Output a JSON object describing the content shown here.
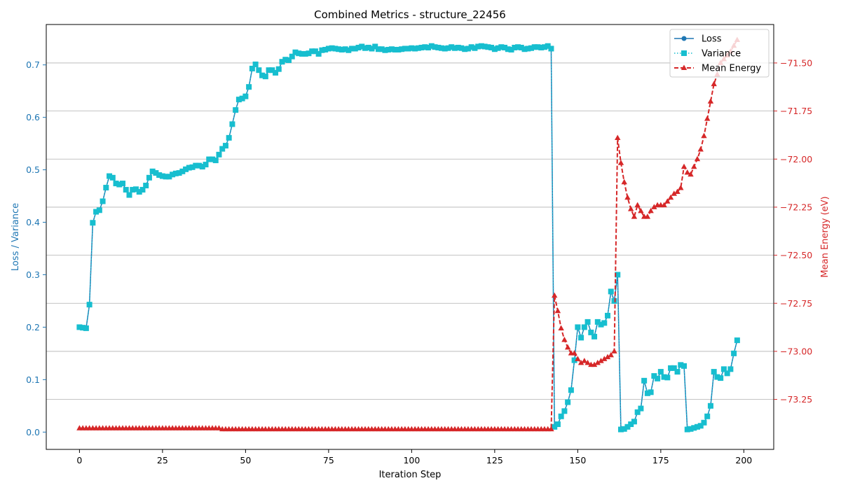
{
  "chart_data": {
    "type": "line",
    "title": "Combined Metrics - structure_22456",
    "xlabel": "Iteration Step",
    "ylabel_left": "Loss / Variance",
    "ylabel_right": "Mean Energy (eV)",
    "xlim": [
      -10,
      209
    ],
    "ylim_left": [
      -0.033,
      0.777
    ],
    "ylim_right": [
      -73.51,
      -71.3
    ],
    "xticks": [
      0,
      25,
      50,
      75,
      100,
      125,
      150,
      175,
      200
    ],
    "xtick_labels": [
      "0",
      "25",
      "50",
      "75",
      "100",
      "125",
      "150",
      "175",
      "200"
    ],
    "yticks_left": [
      0.0,
      0.1,
      0.2,
      0.3,
      0.4,
      0.5,
      0.6,
      0.7
    ],
    "ytick_labels_left": [
      "0.0",
      "0.1",
      "0.2",
      "0.3",
      "0.4",
      "0.5",
      "0.6",
      "0.7"
    ],
    "yticks_right": [
      -73.25,
      -73.0,
      -72.75,
      -72.5,
      -72.25,
      -72.0,
      -71.75,
      -71.5
    ],
    "ytick_labels_right": [
      "−73.25",
      "−73.00",
      "−72.75",
      "−72.50",
      "−72.25",
      "−72.00",
      "−71.75",
      "−71.50"
    ],
    "grid": "horizontal (right axis)",
    "legend_position": "top-right",
    "colors": {
      "loss": "#1f77b4",
      "variance": "#17becf",
      "energy": "#d62728",
      "left_axis": "#1f77b4",
      "right_axis": "#d62728",
      "grid": "#b0b0b0"
    },
    "series": [
      {
        "name": "Loss",
        "axis": "left",
        "style": "solid",
        "marker": "circle",
        "values": [
          0.2,
          0.199,
          0.198,
          0.243,
          0.399,
          0.42,
          0.423,
          0.44,
          0.466,
          0.488,
          0.485,
          0.474,
          0.472,
          0.474,
          0.462,
          0.452,
          0.462,
          0.463,
          0.458,
          0.462,
          0.47,
          0.485,
          0.497,
          0.494,
          0.49,
          0.488,
          0.487,
          0.487,
          0.491,
          0.493,
          0.494,
          0.497,
          0.501,
          0.504,
          0.505,
          0.508,
          0.508,
          0.506,
          0.51,
          0.52,
          0.52,
          0.518,
          0.529,
          0.54,
          0.546,
          0.561,
          0.587,
          0.614,
          0.634,
          0.636,
          0.64,
          0.658,
          0.693,
          0.701,
          0.69,
          0.68,
          0.678,
          0.69,
          0.69,
          0.685,
          0.692,
          0.706,
          0.71,
          0.709,
          0.716,
          0.724,
          0.722,
          0.721,
          0.721,
          0.722,
          0.726,
          0.726,
          0.721,
          0.728,
          0.729,
          0.731,
          0.732,
          0.731,
          0.73,
          0.729,
          0.73,
          0.728,
          0.731,
          0.731,
          0.733,
          0.735,
          0.732,
          0.733,
          0.731,
          0.735,
          0.73,
          0.73,
          0.728,
          0.729,
          0.73,
          0.729,
          0.729,
          0.73,
          0.731,
          0.731,
          0.732,
          0.731,
          0.732,
          0.733,
          0.734,
          0.733,
          0.736,
          0.734,
          0.733,
          0.732,
          0.731,
          0.732,
          0.734,
          0.732,
          0.733,
          0.732,
          0.73,
          0.731,
          0.734,
          0.732,
          0.735,
          0.736,
          0.735,
          0.734,
          0.733,
          0.73,
          0.732,
          0.734,
          0.733,
          0.73,
          0.729,
          0.733,
          0.734,
          0.733,
          0.73,
          0.731,
          0.732,
          0.734,
          0.734,
          0.733,
          0.734,
          0.736,
          0.731,
          0.01,
          0.015,
          0.03,
          0.04,
          0.057,
          0.08,
          0.137,
          0.2,
          0.18,
          0.2,
          0.21,
          0.19,
          0.182,
          0.21,
          0.205,
          0.208,
          0.222,
          0.268,
          0.25,
          0.3,
          0.005,
          0.006,
          0.01,
          0.015,
          0.02,
          0.038,
          0.045,
          0.098,
          0.074,
          0.076,
          0.107,
          0.102,
          0.115,
          0.105,
          0.104,
          0.122,
          0.122,
          0.115,
          0.128,
          0.126,
          0.005,
          0.006,
          0.008,
          0.01,
          0.012,
          0.018,
          0.03,
          0.05,
          0.115,
          0.105,
          0.103,
          0.12,
          0.112,
          0.12,
          0.15,
          0.175
        ]
      },
      {
        "name": "Variance",
        "axis": "left",
        "style": "dotted",
        "marker": "square",
        "values": [
          0.2,
          0.199,
          0.198,
          0.243,
          0.399,
          0.42,
          0.423,
          0.44,
          0.466,
          0.488,
          0.485,
          0.474,
          0.472,
          0.474,
          0.462,
          0.452,
          0.462,
          0.463,
          0.458,
          0.462,
          0.47,
          0.485,
          0.497,
          0.494,
          0.49,
          0.488,
          0.487,
          0.487,
          0.491,
          0.493,
          0.494,
          0.497,
          0.501,
          0.504,
          0.505,
          0.508,
          0.508,
          0.506,
          0.51,
          0.52,
          0.52,
          0.518,
          0.529,
          0.54,
          0.546,
          0.561,
          0.587,
          0.614,
          0.634,
          0.636,
          0.64,
          0.658,
          0.693,
          0.701,
          0.69,
          0.68,
          0.678,
          0.69,
          0.69,
          0.685,
          0.692,
          0.706,
          0.71,
          0.709,
          0.716,
          0.724,
          0.722,
          0.721,
          0.721,
          0.722,
          0.726,
          0.726,
          0.721,
          0.728,
          0.729,
          0.731,
          0.732,
          0.731,
          0.73,
          0.729,
          0.73,
          0.728,
          0.731,
          0.731,
          0.733,
          0.735,
          0.732,
          0.733,
          0.731,
          0.735,
          0.73,
          0.73,
          0.728,
          0.729,
          0.73,
          0.729,
          0.729,
          0.73,
          0.731,
          0.731,
          0.732,
          0.731,
          0.732,
          0.733,
          0.734,
          0.733,
          0.736,
          0.734,
          0.733,
          0.732,
          0.731,
          0.732,
          0.734,
          0.732,
          0.733,
          0.732,
          0.73,
          0.731,
          0.734,
          0.732,
          0.735,
          0.736,
          0.735,
          0.734,
          0.733,
          0.73,
          0.732,
          0.734,
          0.733,
          0.73,
          0.729,
          0.733,
          0.734,
          0.733,
          0.73,
          0.731,
          0.732,
          0.734,
          0.734,
          0.733,
          0.734,
          0.736,
          0.731,
          0.01,
          0.015,
          0.03,
          0.04,
          0.057,
          0.08,
          0.137,
          0.2,
          0.18,
          0.2,
          0.21,
          0.19,
          0.182,
          0.21,
          0.205,
          0.208,
          0.222,
          0.268,
          0.25,
          0.3,
          0.005,
          0.006,
          0.01,
          0.015,
          0.02,
          0.038,
          0.045,
          0.098,
          0.074,
          0.076,
          0.107,
          0.102,
          0.115,
          0.105,
          0.104,
          0.122,
          0.122,
          0.115,
          0.128,
          0.126,
          0.005,
          0.006,
          0.008,
          0.01,
          0.012,
          0.018,
          0.03,
          0.05,
          0.115,
          0.105,
          0.103,
          0.12,
          0.112,
          0.12,
          0.15,
          0.175
        ]
      },
      {
        "name": "Mean Energy",
        "axis": "right",
        "style": "dashed",
        "marker": "triangle",
        "values": [
          -73.4,
          -73.4,
          -73.4,
          -73.4,
          -73.4,
          -73.4,
          -73.4,
          -73.4,
          -73.4,
          -73.4,
          -73.4,
          -73.4,
          -73.4,
          -73.4,
          -73.4,
          -73.4,
          -73.4,
          -73.4,
          -73.4,
          -73.4,
          -73.4,
          -73.4,
          -73.4,
          -73.4,
          -73.4,
          -73.4,
          -73.4,
          -73.4,
          -73.4,
          -73.4,
          -73.4,
          -73.4,
          -73.4,
          -73.4,
          -73.4,
          -73.4,
          -73.4,
          -73.4,
          -73.4,
          -73.4,
          -73.4,
          -73.4,
          -73.4,
          -73.405,
          -73.405,
          -73.405,
          -73.405,
          -73.405,
          -73.405,
          -73.405,
          -73.405,
          -73.405,
          -73.405,
          -73.405,
          -73.405,
          -73.405,
          -73.405,
          -73.405,
          -73.405,
          -73.405,
          -73.405,
          -73.405,
          -73.405,
          -73.405,
          -73.405,
          -73.405,
          -73.405,
          -73.405,
          -73.405,
          -73.405,
          -73.405,
          -73.405,
          -73.405,
          -73.405,
          -73.405,
          -73.405,
          -73.405,
          -73.405,
          -73.405,
          -73.405,
          -73.405,
          -73.405,
          -73.405,
          -73.405,
          -73.405,
          -73.405,
          -73.405,
          -73.405,
          -73.405,
          -73.405,
          -73.405,
          -73.405,
          -73.405,
          -73.405,
          -73.405,
          -73.405,
          -73.405,
          -73.405,
          -73.405,
          -73.405,
          -73.405,
          -73.405,
          -73.405,
          -73.405,
          -73.405,
          -73.405,
          -73.405,
          -73.405,
          -73.405,
          -73.405,
          -73.405,
          -73.405,
          -73.405,
          -73.405,
          -73.405,
          -73.405,
          -73.405,
          -73.405,
          -73.405,
          -73.405,
          -73.405,
          -73.405,
          -73.405,
          -73.405,
          -73.405,
          -73.405,
          -73.405,
          -73.405,
          -73.405,
          -73.405,
          -73.405,
          -73.405,
          -73.405,
          -73.405,
          -73.405,
          -73.405,
          -73.405,
          -73.405,
          -73.405,
          -73.405,
          -73.405,
          -73.405,
          -73.405,
          -72.71,
          -72.79,
          -72.88,
          -72.94,
          -72.98,
          -73.01,
          -73.01,
          -73.04,
          -73.06,
          -73.05,
          -73.06,
          -73.07,
          -73.07,
          -73.06,
          -73.05,
          -73.04,
          -73.03,
          -73.02,
          -73.0,
          -71.89,
          -72.02,
          -72.12,
          -72.2,
          -72.26,
          -72.3,
          -72.24,
          -72.27,
          -72.3,
          -72.3,
          -72.27,
          -72.25,
          -72.24,
          -72.24,
          -72.24,
          -72.22,
          -72.2,
          -72.18,
          -72.17,
          -72.15,
          -72.04,
          -72.07,
          -72.08,
          -72.04,
          -72.0,
          -71.95,
          -71.88,
          -71.79,
          -71.7,
          -71.61,
          -71.56,
          -71.5,
          -71.48,
          -71.46,
          -71.44,
          -71.41,
          -71.38
        ]
      }
    ]
  }
}
